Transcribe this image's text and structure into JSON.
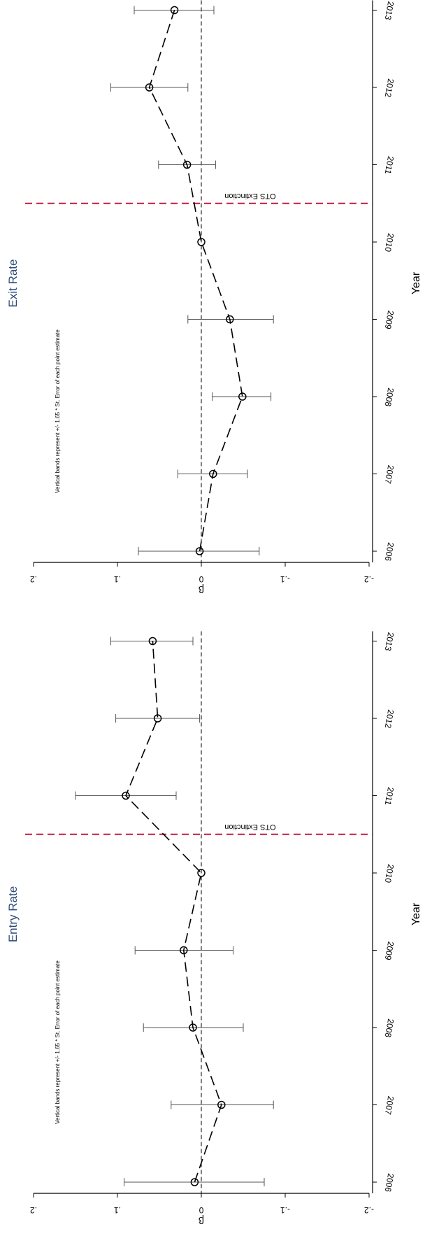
{
  "chart_data": [
    {
      "type": "line",
      "title": "Exit Rate",
      "xlabel": "Year",
      "ylabel": "β",
      "x": [
        2006,
        2007,
        2008,
        2009,
        2010,
        2011,
        2012,
        2013
      ],
      "x_tick_labels": [
        "2006",
        "2007",
        "2008",
        "2009",
        "2010",
        "2011",
        "2012",
        "2013"
      ],
      "ylim": [
        -0.2,
        0.2
      ],
      "y_ticks": [
        0.2,
        0.1,
        0,
        -0.1,
        -0.2
      ],
      "y_tick_labels": [
        ".2",
        ".1",
        "0",
        "-.1",
        "-.2"
      ],
      "series": [
        {
          "values": [
            0.002,
            -0.014,
            -0.049,
            -0.034,
            0.0,
            0.017,
            0.062,
            0.032
          ],
          "error_bars": [
            [
              0.075,
              -0.069
            ],
            [
              0.028,
              -0.055
            ],
            [
              -0.013,
              -0.083
            ],
            [
              0.016,
              -0.086
            ],
            null,
            [
              0.051,
              -0.017
            ],
            [
              0.108,
              0.016
            ],
            [
              0.08,
              -0.015
            ]
          ]
        }
      ],
      "reference_line": {
        "value": 0,
        "style": "dashed"
      },
      "event_line": {
        "between": [
          2010,
          2011
        ],
        "label": "OTS Extinction",
        "color": "#c41a41"
      },
      "annotation": "Vertical bands represent +/- 1.65 * St. Error of each point estimate"
    },
    {
      "type": "line",
      "title": "Entry Rate",
      "xlabel": "Year",
      "ylabel": "β",
      "x": [
        2006,
        2007,
        2008,
        2009,
        2010,
        2011,
        2012,
        2013
      ],
      "x_tick_labels": [
        "2006",
        "2007",
        "2008",
        "2009",
        "2010",
        "2011",
        "2012",
        "2013"
      ],
      "ylim": [
        -0.2,
        0.2
      ],
      "y_ticks": [
        0.2,
        0.1,
        0,
        -0.1,
        -0.2
      ],
      "y_tick_labels": [
        ".2",
        ".1",
        "0",
        "-.1",
        "-.2"
      ],
      "series": [
        {
          "values": [
            0.008,
            -0.024,
            0.01,
            0.021,
            0.0,
            0.09,
            0.052,
            0.058
          ],
          "error_bars": [
            [
              0.092,
              -0.075
            ],
            [
              0.036,
              -0.086
            ],
            [
              0.069,
              -0.05
            ],
            [
              0.079,
              -0.038
            ],
            null,
            [
              0.15,
              0.03
            ],
            [
              0.102,
              0.002
            ],
            [
              0.108,
              0.01
            ]
          ]
        }
      ],
      "reference_line": {
        "value": 0,
        "style": "dashed"
      },
      "event_line": {
        "between": [
          2010,
          2011
        ],
        "label": "OTS Extinction",
        "color": "#c41a41"
      },
      "annotation": "Vertical bands represent +/- 1.65 * St. Error of each point estimate"
    }
  ]
}
